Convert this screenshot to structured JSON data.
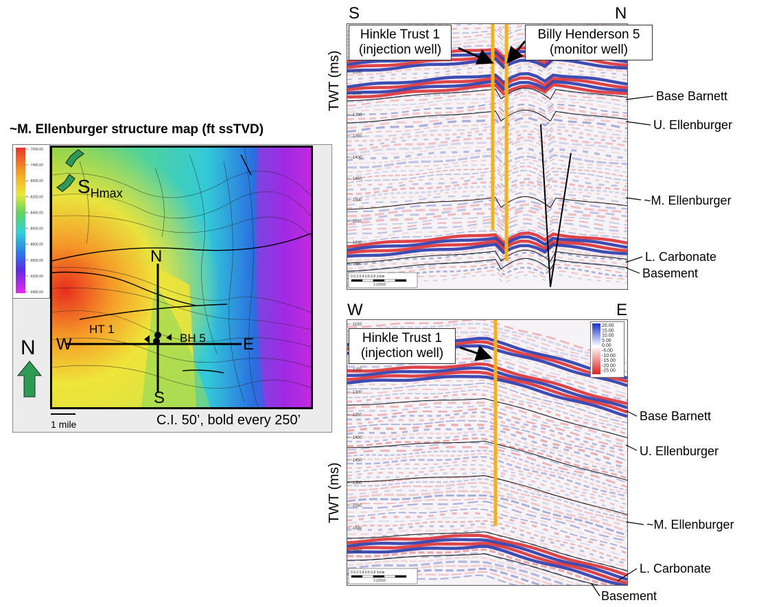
{
  "map": {
    "title": "~M. Ellenburger structure map (ft ssTVD)",
    "colorbar_ticks": [
      "-7000.00",
      "-7400.00",
      "-8000.00",
      "-8200.00",
      "-8400.00",
      "-8600.00",
      "-8800.00",
      "-9000.00",
      "-9200.00",
      "-9400.00"
    ],
    "shmax_label": "S",
    "shmax_sub": "Hmax",
    "line_labels": {
      "north": "N",
      "south": "S",
      "west": "W",
      "east": "E"
    },
    "well_labels": {
      "ht1": "HT 1",
      "bh5": "BH 5"
    },
    "north_arrow": "N",
    "scale_label": "1 mile",
    "contour_note": "C.I. 50’, bold every 250’"
  },
  "section_top": {
    "left_dir": "S",
    "right_dir": "N",
    "axis_label": "TWT (ms)",
    "callouts": [
      {
        "line1": "Hinkle Trust 1",
        "line2": "(injection well)"
      },
      {
        "line1": "Billy Henderson 5",
        "line2": "(monitor well)"
      }
    ],
    "horizons": [
      "Base Barnett",
      "U. Ellenburger",
      "~M. Ellenburger",
      "L. Carbonate",
      "Basement"
    ],
    "y_ticks": [
      "-1200",
      "-1250",
      "-1300",
      "-1350",
      "-1400",
      "-1450",
      "-1500",
      "-1550",
      "-1600",
      "-1650",
      "-1700"
    ],
    "scale_ticks": "0   0.2  0.4  0.6  0.8   1mile",
    "scale_ratio": "1:22016"
  },
  "section_bottom": {
    "left_dir": "W",
    "right_dir": "E",
    "axis_label": "TWT (ms)",
    "callouts": [
      {
        "line1": "Hinkle Trust 1",
        "line2": "(injection well)"
      }
    ],
    "horizons": [
      "Base Barnett",
      "U. Ellenburger",
      "~M. Ellenburger",
      "L. Carbonate",
      "Basement"
    ],
    "y_ticks": [
      "-1150",
      "-1200",
      "-1250",
      "-1300",
      "-1350",
      "-1400",
      "-1450",
      "-1500",
      "-1550",
      "-1600",
      "-1650",
      "-1700"
    ],
    "amplitude_legend": [
      "20.00",
      "15.00",
      "10.00",
      "5.00",
      "0.00",
      "-5.00",
      "-10.00",
      "-15.00",
      "-20.00",
      "-25.00"
    ],
    "scale_ticks": "0   0.2  0.4  0.6  0.8   1mile",
    "scale_ratio": "1:22016"
  },
  "colors": {
    "well": "#f2b21b",
    "seis_red": "#d9262b",
    "seis_blue": "#1f2fa6"
  }
}
